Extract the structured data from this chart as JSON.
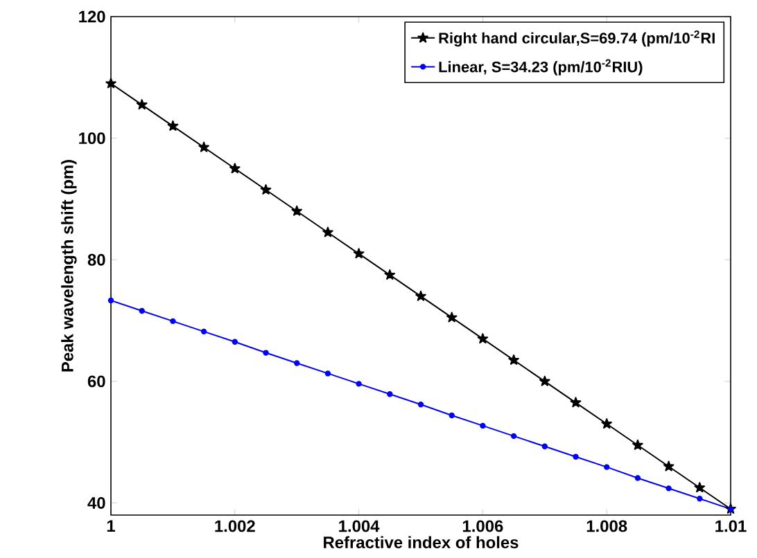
{
  "chart_data": {
    "type": "line",
    "xlabel": "Refractive index of holes",
    "ylabel": "Peak wavelength shift (pm)",
    "x": [
      1,
      1.0005,
      1.001,
      1.0015,
      1.002,
      1.0025,
      1.003,
      1.0035,
      1.004,
      1.0045,
      1.005,
      1.0055,
      1.006,
      1.0065,
      1.007,
      1.0075,
      1.008,
      1.0085,
      1.009,
      1.0095,
      1.01
    ],
    "series": [
      {
        "name": "Right hand circular,S=69.74 (pm/10$^{-2}$RI",
        "color": "#000000",
        "marker": "star",
        "values": [
          109,
          105.5,
          102,
          98.5,
          95,
          91.5,
          88,
          84.5,
          81,
          77.5,
          74,
          70.5,
          67,
          63.5,
          60,
          56.5,
          53,
          49.5,
          46,
          42.5,
          39
        ]
      },
      {
        "name": "Linear, S=34.23 (pm/10$^{-2}$RIU)",
        "color": "#0000ff",
        "marker": "circle",
        "values": [
          73.3,
          71.6,
          69.9,
          68.2,
          66.5,
          64.7,
          63.0,
          61.3,
          59.6,
          57.9,
          56.2,
          54.4,
          52.7,
          51.0,
          49.3,
          47.6,
          45.9,
          44.1,
          42.4,
          40.7,
          39.0
        ]
      }
    ],
    "xlim": [
      1,
      1.01
    ],
    "ylim": [
      38,
      120
    ],
    "xticks": [
      1,
      1.002,
      1.004,
      1.006,
      1.008,
      1.01
    ],
    "yticks": [
      40,
      60,
      80,
      100,
      120
    ],
    "legend": "top right",
    "line_style": "solid"
  }
}
